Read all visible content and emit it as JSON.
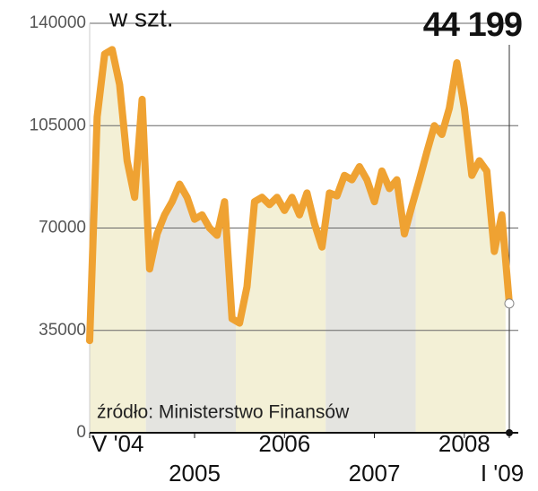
{
  "chart_data": {
    "type": "line",
    "unit_label": "w szt.",
    "annotation": "44 199",
    "source": "źródło: Ministerstwo Finansów",
    "categories": [
      "V '04",
      null,
      null,
      null,
      null,
      null,
      null,
      null,
      null,
      null,
      null,
      null,
      null,
      null,
      "2005",
      null,
      null,
      null,
      null,
      null,
      null,
      null,
      null,
      null,
      null,
      null,
      "2006",
      null,
      null,
      null,
      null,
      null,
      null,
      null,
      null,
      null,
      null,
      null,
      "2007",
      null,
      null,
      null,
      null,
      null,
      null,
      null,
      null,
      null,
      null,
      null,
      "2008",
      null,
      null,
      null,
      null,
      null,
      "I '09"
    ],
    "values": [
      31500,
      108000,
      129500,
      131000,
      119000,
      93000,
      80500,
      114000,
      56000,
      68000,
      74500,
      79000,
      85000,
      80500,
      73000,
      74500,
      70000,
      67500,
      79000,
      39000,
      37500,
      50000,
      79000,
      80500,
      78000,
      80500,
      76000,
      80500,
      74500,
      82000,
      71500,
      63500,
      82000,
      81000,
      88000,
      86500,
      91000,
      86500,
      79000,
      89500,
      83500,
      86500,
      68000,
      77500,
      86500,
      96000,
      105000,
      102000,
      111000,
      126500,
      111000,
      88000,
      93000,
      89500,
      62000,
      74500,
      44199
    ],
    "color": "#efa232",
    "ylim": [
      0,
      140000
    ],
    "yticks": [
      0,
      35000,
      70000,
      105000,
      140000
    ],
    "grid": true
  }
}
